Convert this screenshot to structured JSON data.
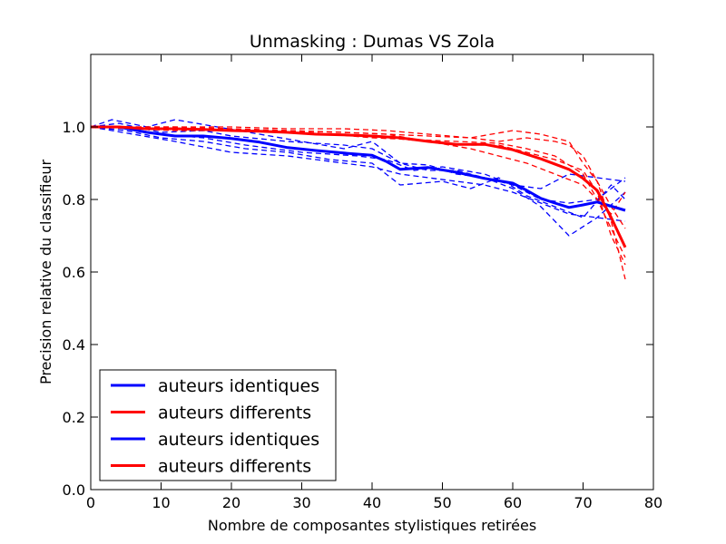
{
  "chart_data": {
    "type": "line",
    "title": "Unmasking : Dumas VS Zola",
    "xlabel": "Nombre de composantes stylistiques retirées",
    "ylabel": "Precision relative du classifieur",
    "xlim": [
      0,
      80
    ],
    "ylim": [
      0,
      1.2
    ],
    "xticks": [
      "0",
      "10",
      "20",
      "30",
      "40",
      "50",
      "60",
      "70",
      "80"
    ],
    "yticks": [
      "0.0",
      "0.2",
      "0.4",
      "0.6",
      "0.8",
      "1.0"
    ],
    "grid": false,
    "legend_position": "lower-left",
    "legend": [
      "auteurs identiques",
      "auteurs differents",
      "auteurs identiques",
      "auteurs differents"
    ],
    "colors": {
      "identiques": "#0000ff",
      "differents": "#ff0000"
    },
    "series": [
      {
        "name": "auteurs identiques",
        "style": "solid",
        "color": "#0000ff",
        "x": [
          0,
          4,
          8,
          12,
          16,
          20,
          24,
          28,
          32,
          36,
          40,
          42,
          44,
          48,
          52,
          56,
          60,
          62,
          64,
          66,
          68,
          70,
          72,
          76
        ],
        "y": [
          1.0,
          1.0,
          0.985,
          0.975,
          0.975,
          0.968,
          0.958,
          0.943,
          0.935,
          0.928,
          0.922,
          0.905,
          0.883,
          0.888,
          0.875,
          0.858,
          0.845,
          0.825,
          0.803,
          0.79,
          0.778,
          0.785,
          0.793,
          0.77
        ]
      },
      {
        "name": "auteurs differents",
        "style": "solid",
        "color": "#ff0000",
        "x": [
          0,
          4,
          8,
          12,
          16,
          20,
          24,
          28,
          32,
          36,
          40,
          44,
          48,
          52,
          56,
          60,
          64,
          68,
          70,
          72,
          74,
          76
        ],
        "y": [
          1.0,
          1.0,
          0.995,
          0.995,
          0.993,
          0.99,
          0.988,
          0.985,
          0.98,
          0.978,
          0.975,
          0.97,
          0.96,
          0.952,
          0.952,
          0.937,
          0.912,
          0.883,
          0.858,
          0.825,
          0.75,
          0.668
        ]
      },
      {
        "name": "auteurs identiques",
        "style": "dashed",
        "color": "#0000ff",
        "x": [
          0,
          4,
          10,
          16,
          20,
          28,
          36,
          40,
          44,
          48,
          52,
          56,
          60,
          64,
          68,
          72,
          76
        ],
        "y": [
          1.0,
          1.01,
          0.985,
          0.99,
          0.975,
          0.96,
          0.95,
          0.94,
          0.9,
          0.895,
          0.87,
          0.86,
          0.84,
          0.8,
          0.79,
          0.8,
          0.86
        ]
      },
      {
        "name": "auteurs identiques",
        "style": "dashed",
        "color": "#0000ff",
        "x": [
          0,
          6,
          12,
          20,
          28,
          36,
          40,
          44,
          48,
          52,
          56,
          60,
          64,
          68,
          72,
          76
        ],
        "y": [
          1.0,
          0.98,
          0.96,
          0.93,
          0.92,
          0.9,
          0.89,
          0.87,
          0.86,
          0.85,
          0.84,
          0.82,
          0.79,
          0.76,
          0.75,
          0.74
        ]
      },
      {
        "name": "auteurs identiques",
        "style": "dashed",
        "color": "#0000ff",
        "x": [
          0,
          3,
          8,
          12,
          18,
          24,
          30,
          36,
          40,
          44,
          48,
          52,
          56,
          60,
          64,
          68,
          72,
          76
        ],
        "y": [
          1.0,
          1.02,
          1.0,
          1.02,
          1.0,
          0.98,
          0.96,
          0.94,
          0.96,
          0.9,
          0.88,
          0.88,
          0.86,
          0.83,
          0.78,
          0.7,
          0.75,
          0.82
        ]
      },
      {
        "name": "auteurs identiques",
        "style": "dashed",
        "color": "#0000ff",
        "x": [
          0,
          5,
          10,
          16,
          22,
          28,
          34,
          40,
          44,
          50,
          54,
          58,
          62,
          66,
          70,
          74,
          76
        ],
        "y": [
          1.0,
          0.99,
          0.97,
          0.96,
          0.94,
          0.93,
          0.91,
          0.9,
          0.84,
          0.85,
          0.83,
          0.86,
          0.81,
          0.78,
          0.75,
          0.84,
          0.8
        ]
      },
      {
        "name": "auteurs identiques",
        "style": "dashed",
        "color": "#0000ff",
        "x": [
          0,
          4,
          10,
          16,
          22,
          30,
          38,
          42,
          46,
          50,
          56,
          60,
          64,
          68,
          72,
          76
        ],
        "y": [
          1.0,
          1.0,
          0.98,
          0.97,
          0.95,
          0.93,
          0.92,
          0.91,
          0.88,
          0.89,
          0.87,
          0.84,
          0.83,
          0.87,
          0.86,
          0.85
        ]
      },
      {
        "name": "auteurs differents",
        "style": "dashed",
        "color": "#ff0000",
        "x": [
          0,
          6,
          12,
          20,
          28,
          36,
          42,
          48,
          54,
          58,
          62,
          66,
          68,
          70,
          72,
          74,
          76
        ],
        "y": [
          1.0,
          1.0,
          1.0,
          1.0,
          0.995,
          0.995,
          0.99,
          0.98,
          0.97,
          0.96,
          0.97,
          0.96,
          0.95,
          0.92,
          0.85,
          0.78,
          0.72
        ]
      },
      {
        "name": "auteurs differents",
        "style": "dashed",
        "color": "#ff0000",
        "x": [
          0,
          6,
          12,
          20,
          28,
          36,
          42,
          48,
          54,
          58,
          62,
          66,
          70,
          72,
          74,
          76
        ],
        "y": [
          1.0,
          0.995,
          0.99,
          0.99,
          0.985,
          0.98,
          0.97,
          0.96,
          0.95,
          0.95,
          0.93,
          0.91,
          0.88,
          0.82,
          0.7,
          0.62
        ]
      },
      {
        "name": "auteurs differents",
        "style": "dashed",
        "color": "#ff0000",
        "x": [
          0,
          6,
          12,
          20,
          28,
          36,
          42,
          48,
          54,
          60,
          64,
          68,
          70,
          72,
          74,
          76
        ],
        "y": [
          1.0,
          1.0,
          0.995,
          0.99,
          0.99,
          0.985,
          0.98,
          0.975,
          0.97,
          0.99,
          0.98,
          0.96,
          0.9,
          0.85,
          0.74,
          0.58
        ]
      },
      {
        "name": "auteurs differents",
        "style": "dashed",
        "color": "#ff0000",
        "x": [
          0,
          6,
          12,
          20,
          28,
          34,
          40,
          46,
          52,
          58,
          62,
          66,
          70,
          72,
          74,
          76
        ],
        "y": [
          1.0,
          1.0,
          1.0,
          0.995,
          0.99,
          0.98,
          0.97,
          0.965,
          0.96,
          0.955,
          0.94,
          0.92,
          0.87,
          0.8,
          0.72,
          0.64
        ]
      },
      {
        "name": "auteurs differents",
        "style": "dashed",
        "color": "#ff0000",
        "x": [
          0,
          6,
          12,
          20,
          28,
          36,
          42,
          48,
          54,
          58,
          62,
          66,
          70,
          72,
          74,
          76
        ],
        "y": [
          1.0,
          1.0,
          0.995,
          0.995,
          0.99,
          0.985,
          0.98,
          0.96,
          0.94,
          0.92,
          0.9,
          0.87,
          0.84,
          0.8,
          0.76,
          0.82
        ]
      }
    ]
  }
}
